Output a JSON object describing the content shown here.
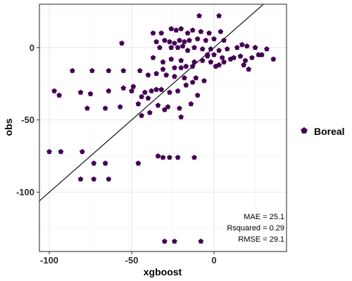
{
  "chart_data": {
    "type": "scatter",
    "xlabel": "xgboost",
    "ylabel": "obs",
    "xlim": [
      -106,
      44
    ],
    "ylim": [
      -141,
      30
    ],
    "xticks": [
      -100,
      -50,
      0
    ],
    "yticks": [
      -100,
      -50,
      0
    ],
    "xtick_labels": [
      "-100",
      "-50",
      "0"
    ],
    "ytick_labels": [
      "-100",
      "-50",
      "0"
    ],
    "grid": true,
    "legend_position": "right",
    "reference_line": {
      "slope": 1,
      "intercept": 0
    },
    "series": [
      {
        "name": "Boreal",
        "color": "#440154",
        "points": [
          [
            -9,
            22
          ],
          [
            3,
            22
          ],
          [
            -37,
            10
          ],
          [
            -32,
            10
          ],
          [
            -26,
            13
          ],
          [
            -23,
            12
          ],
          [
            -20,
            13
          ],
          [
            -16,
            10
          ],
          [
            -13,
            12
          ],
          [
            -8,
            11
          ],
          [
            -3,
            10
          ],
          [
            4,
            11
          ],
          [
            -35,
            4
          ],
          [
            -30,
            5
          ],
          [
            -27,
            4
          ],
          [
            -24,
            3
          ],
          [
            -21,
            5
          ],
          [
            -18,
            4
          ],
          [
            -15,
            5
          ],
          [
            -10,
            6
          ],
          [
            -5,
            5
          ],
          [
            0,
            6
          ],
          [
            6,
            5
          ],
          [
            -56,
            3
          ],
          [
            -33,
            0
          ],
          [
            -26,
            0
          ],
          [
            -22,
            0
          ],
          [
            -19,
            1
          ],
          [
            -16,
            -2
          ],
          [
            -12,
            0
          ],
          [
            -7,
            -1
          ],
          [
            -2,
            -1
          ],
          [
            3,
            -2
          ],
          [
            8,
            -1
          ],
          [
            14,
            0
          ],
          [
            17,
            2
          ],
          [
            20,
            1
          ],
          [
            25,
            0
          ],
          [
            29,
            -5
          ],
          [
            32,
            -1
          ],
          [
            36,
            -8
          ],
          [
            -4,
            -6
          ],
          [
            0,
            -5
          ],
          [
            5,
            -7
          ],
          [
            10,
            -8
          ],
          [
            16,
            -6
          ],
          [
            19,
            -9
          ],
          [
            23,
            -7
          ],
          [
            -2,
            -10
          ],
          [
            3,
            -12
          ],
          [
            -37,
            -7
          ],
          [
            -31,
            -10
          ],
          [
            -26,
            -8
          ],
          [
            -20,
            -9
          ],
          [
            -12,
            -10
          ],
          [
            -7,
            -9
          ],
          [
            -4,
            -5
          ],
          [
            1,
            -13
          ],
          [
            6,
            -10
          ],
          [
            12,
            -7
          ],
          [
            18,
            -12
          ],
          [
            21,
            -15
          ],
          [
            27,
            -5
          ],
          [
            -86,
            -16
          ],
          [
            -74,
            -16
          ],
          [
            -64,
            -16
          ],
          [
            -55,
            -16
          ],
          [
            -45,
            -16
          ],
          [
            -31,
            -15
          ],
          [
            -24,
            -14
          ],
          [
            -20,
            -14
          ],
          [
            -17,
            -13
          ],
          [
            -13,
            -13
          ],
          [
            -40,
            -19
          ],
          [
            -35,
            -18
          ],
          [
            -29,
            -19
          ],
          [
            -24,
            -20
          ],
          [
            -18,
            -21
          ],
          [
            -11,
            -21
          ],
          [
            -6,
            -23
          ],
          [
            -97,
            -30
          ],
          [
            -94,
            -33
          ],
          [
            -81,
            -31
          ],
          [
            -75,
            -32
          ],
          [
            -64,
            -30
          ],
          [
            -55,
            -28
          ],
          [
            -50,
            -30
          ],
          [
            -49,
            -27
          ],
          [
            -44,
            -34
          ],
          [
            -42,
            -31
          ],
          [
            -38,
            -30
          ],
          [
            -35,
            -29
          ],
          [
            -32,
            -29
          ],
          [
            -27,
            -31
          ],
          [
            -22,
            -30
          ],
          [
            -17,
            -26
          ],
          [
            -13,
            -24
          ],
          [
            -77,
            -42
          ],
          [
            -66,
            -42
          ],
          [
            -57,
            -41
          ],
          [
            -46,
            -39
          ],
          [
            -40,
            -35
          ],
          [
            -34,
            -40
          ],
          [
            -28,
            -41
          ],
          [
            -21,
            -42
          ],
          [
            -14,
            -39
          ],
          [
            -10,
            -33
          ],
          [
            -44,
            -47
          ],
          [
            -39,
            -45
          ],
          [
            -30,
            -43
          ],
          [
            -20,
            -48
          ],
          [
            -100,
            -72
          ],
          [
            -93,
            -72
          ],
          [
            -80,
            -72
          ],
          [
            -73,
            -80
          ],
          [
            -66,
            -80
          ],
          [
            -46,
            -80
          ],
          [
            -34,
            -75
          ],
          [
            -31,
            -76
          ],
          [
            -27,
            -76
          ],
          [
            -22,
            -76
          ],
          [
            -12,
            -76
          ],
          [
            -81,
            -91
          ],
          [
            -73,
            -91
          ],
          [
            -64,
            -91
          ],
          [
            -30,
            -134
          ],
          [
            -24,
            -134
          ],
          [
            -8,
            -134
          ]
        ]
      }
    ],
    "annotations": [
      "MAE = 25.1",
      "Rsquared = 0.29",
      "RMSE = 29.1"
    ]
  }
}
